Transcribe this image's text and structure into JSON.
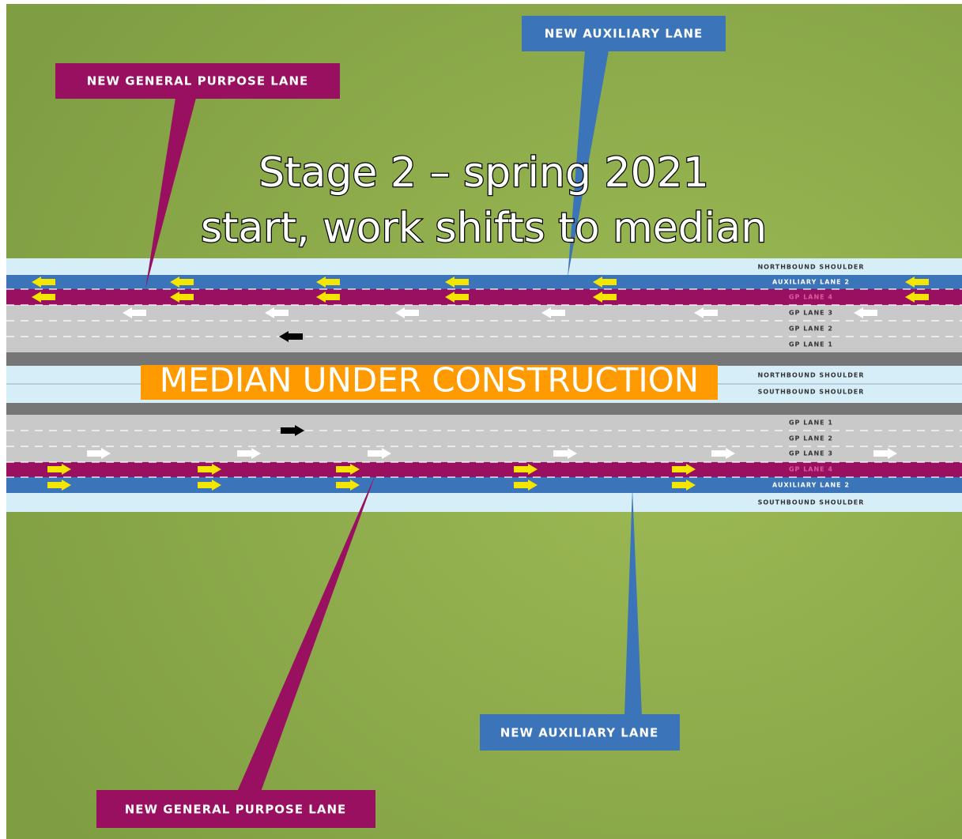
{
  "title": {
    "lines": [
      "Stage 2 – spring 2021",
      "start, work shifts to median"
    ]
  },
  "median_label": "MEDIAN UNDER CONSTRUCTION",
  "callouts": [
    {
      "label": "NEW AUXILIARY LANE"
    },
    {
      "label": "NEW GENERAL PURPOSE LANE"
    },
    {
      "label": "NEW AUXILIARY LANE"
    },
    {
      "label": "NEW GENERAL PURPOSE LANE"
    }
  ],
  "lanes": {
    "north": [
      "NORTHBOUND SHOULDER",
      "AUXILIARY LANE 2",
      "GP  LANE 4",
      "GP  LANE 3",
      "GP  LANE 2",
      "GP  LANE 1"
    ],
    "median": [
      "NORTHBOUND SHOULDER",
      "SOUTHBOUND SHOULDER"
    ],
    "south": [
      "GP  LANE 1",
      "GP  LANE 2",
      "GP  LANE 3",
      "GP  LANE 4",
      "AUXILIARY LANE 2",
      "SOUTHBOUND SHOULDER"
    ]
  }
}
